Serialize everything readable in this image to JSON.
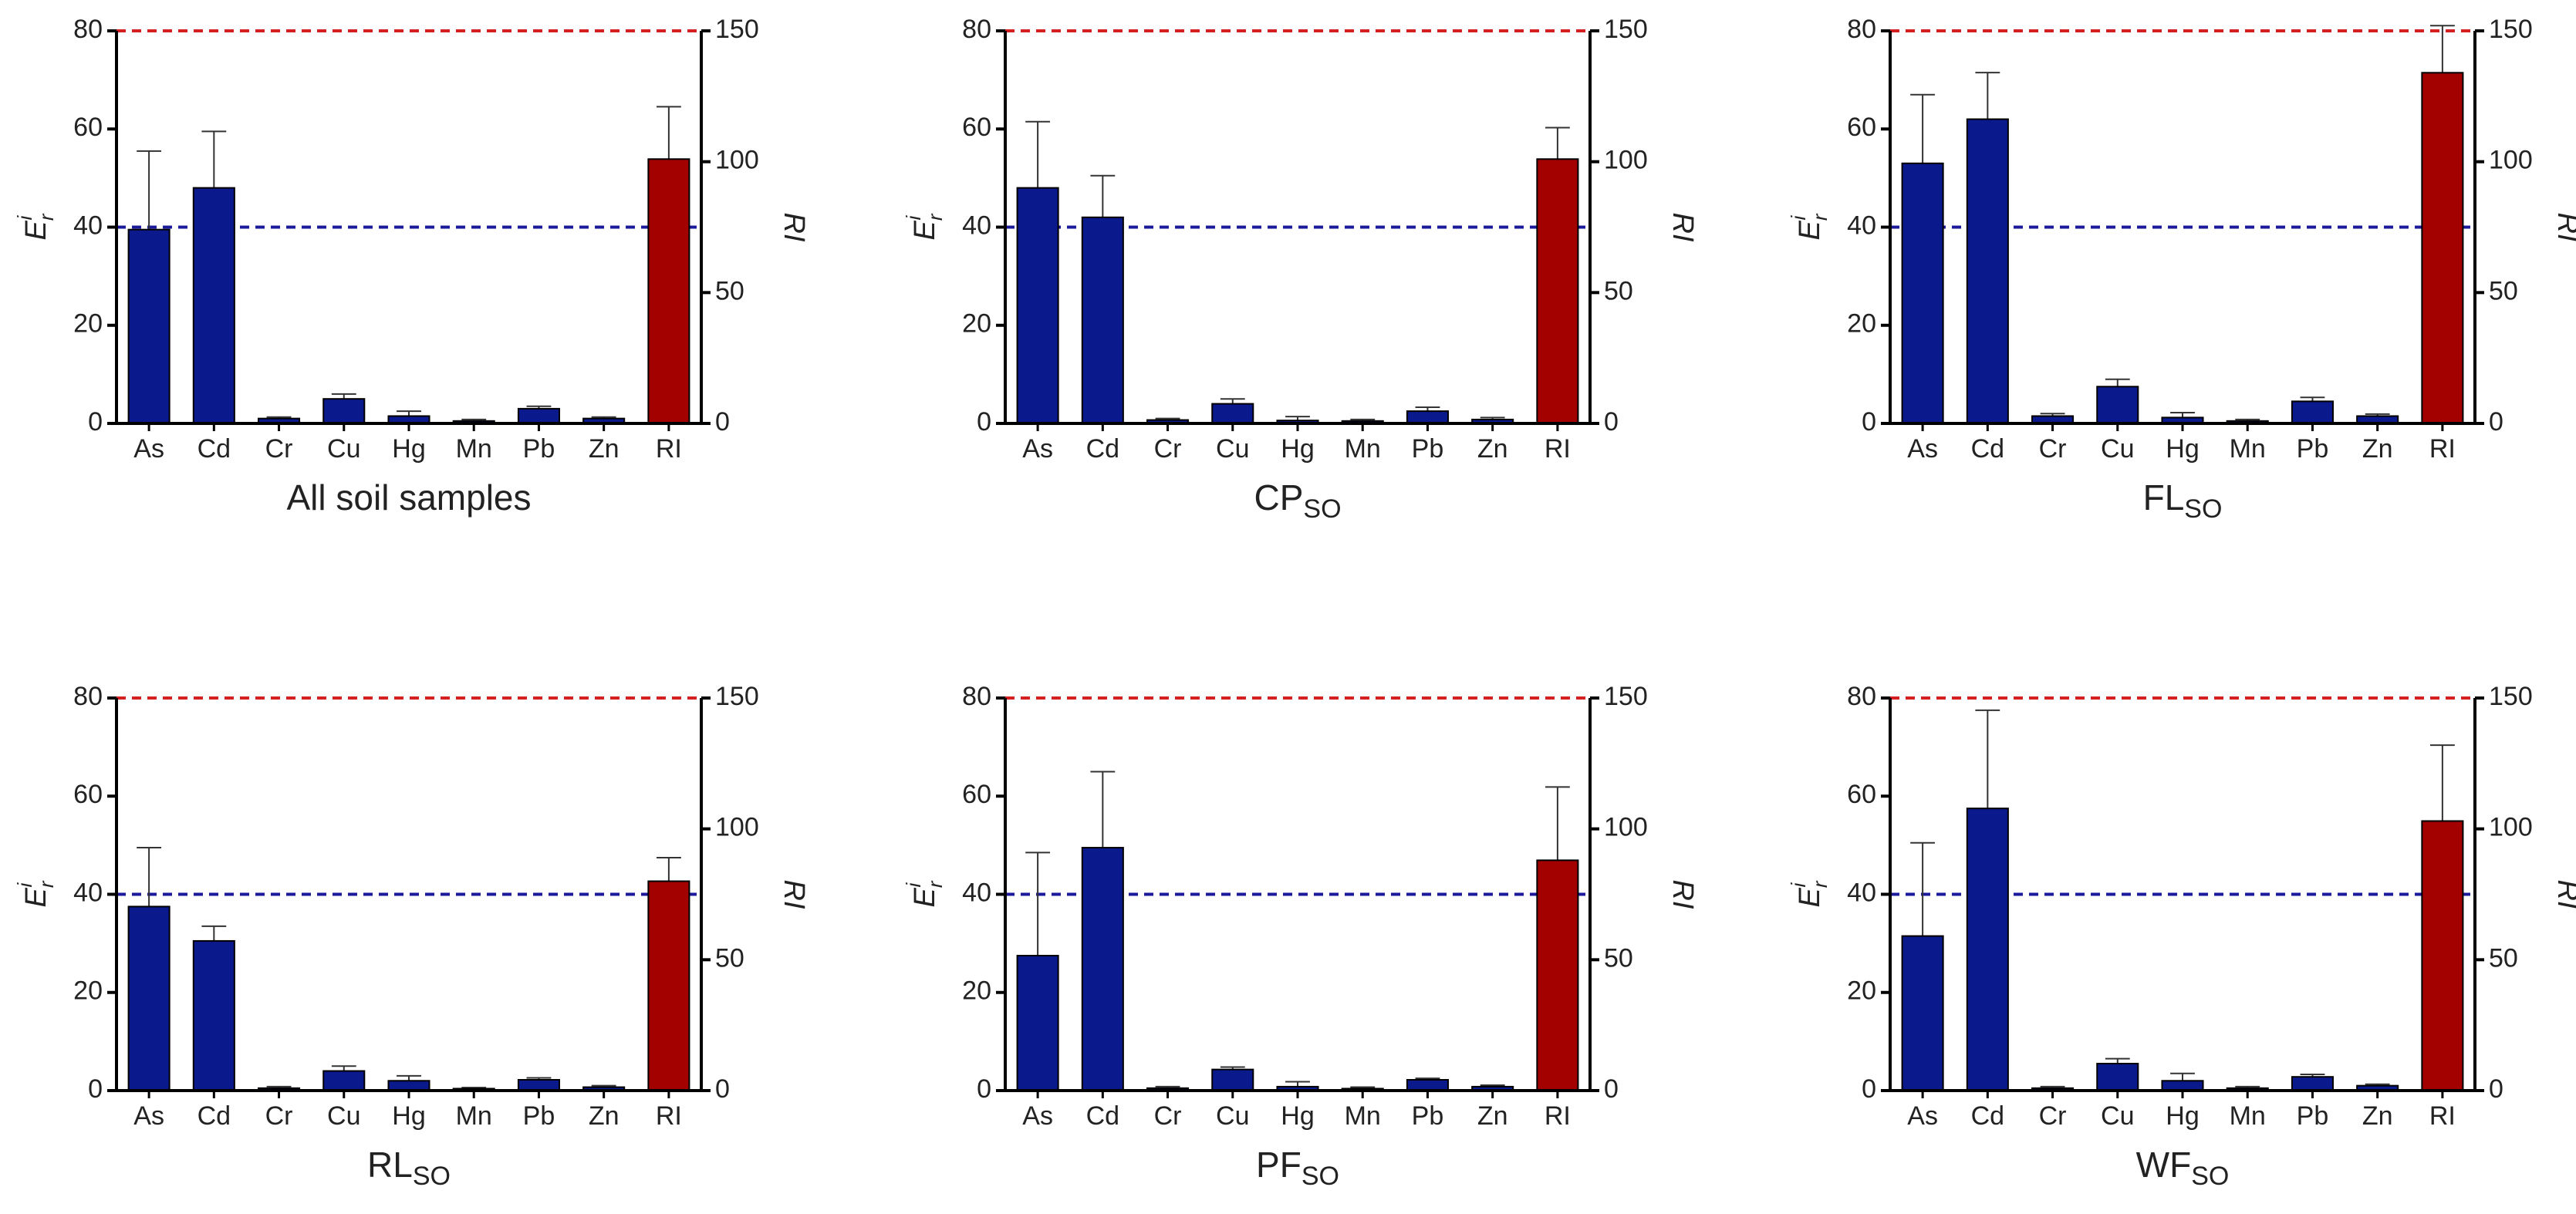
{
  "chart_data": [
    {
      "type": "bar",
      "title": "All soil samples",
      "categories": [
        "As",
        "Cd",
        "Cr",
        "Cu",
        "Hg",
        "Mn",
        "Pb",
        "Zn",
        "RI"
      ],
      "ylabel": "E",
      "ylabel_sub": "r",
      "ylabel_sup": "i",
      "y2label": "RI",
      "ylim": [
        0,
        80
      ],
      "yticks": [
        0,
        20,
        40,
        60,
        80
      ],
      "y2lim": [
        0,
        150
      ],
      "y2ticks": [
        0,
        50,
        100,
        150
      ],
      "hlines": [
        {
          "value": 80,
          "color": "#d42020"
        },
        {
          "value": 40,
          "color": "#1a1a9a"
        }
      ],
      "series": [
        {
          "color": "#0a1a8c",
          "values": [
            39.5,
            48,
            1,
            5,
            1.5,
            0.5,
            3,
            1,
            null
          ],
          "errors": [
            16,
            11.5,
            0.3,
            1,
            1,
            0.3,
            0.5,
            0.3,
            null
          ]
        },
        {
          "color": "#a30000",
          "axis": "y2",
          "values": [
            null,
            null,
            null,
            null,
            null,
            null,
            null,
            null,
            101
          ],
          "errors": [
            null,
            null,
            null,
            null,
            null,
            null,
            null,
            null,
            20
          ]
        }
      ]
    },
    {
      "type": "bar",
      "title": "CP",
      "title_sub": "SO",
      "categories": [
        "As",
        "Cd",
        "Cr",
        "Cu",
        "Hg",
        "Mn",
        "Pb",
        "Zn",
        "RI"
      ],
      "ylabel": "E",
      "ylabel_sub": "r",
      "ylabel_sup": "i",
      "y2label": "RI",
      "ylim": [
        0,
        80
      ],
      "yticks": [
        0,
        20,
        40,
        60,
        80
      ],
      "y2lim": [
        0,
        150
      ],
      "y2ticks": [
        0,
        50,
        100,
        150
      ],
      "hlines": [
        {
          "value": 80,
          "color": "#d42020"
        },
        {
          "value": 40,
          "color": "#1a1a9a"
        }
      ],
      "series": [
        {
          "color": "#0a1a8c",
          "values": [
            48,
            42,
            0.7,
            4,
            0.6,
            0.5,
            2.5,
            0.8,
            null
          ],
          "errors": [
            13.5,
            8.5,
            0.3,
            1,
            0.8,
            0.3,
            0.8,
            0.4,
            null
          ]
        },
        {
          "color": "#a30000",
          "axis": "y2",
          "values": [
            null,
            null,
            null,
            null,
            null,
            null,
            null,
            null,
            101
          ],
          "errors": [
            null,
            null,
            null,
            null,
            null,
            null,
            null,
            null,
            12
          ]
        }
      ]
    },
    {
      "type": "bar",
      "title": "FL",
      "title_sub": "SO",
      "categories": [
        "As",
        "Cd",
        "Cr",
        "Cu",
        "Hg",
        "Mn",
        "Pb",
        "Zn",
        "RI"
      ],
      "ylabel": "E",
      "ylabel_sub": "r",
      "ylabel_sup": "i",
      "y2label": "RI",
      "ylim": [
        0,
        80
      ],
      "yticks": [
        0,
        20,
        40,
        60,
        80
      ],
      "y2lim": [
        0,
        150
      ],
      "y2ticks": [
        0,
        50,
        100,
        150
      ],
      "hlines": [
        {
          "value": 80,
          "color": "#d42020"
        },
        {
          "value": 40,
          "color": "#1a1a9a"
        }
      ],
      "series": [
        {
          "color": "#0a1a8c",
          "values": [
            53,
            62,
            1.5,
            7.5,
            1.2,
            0.5,
            4.5,
            1.5,
            null
          ],
          "errors": [
            14,
            9.5,
            0.5,
            1.5,
            1,
            0.3,
            0.8,
            0.4,
            null
          ]
        },
        {
          "color": "#a30000",
          "axis": "y2",
          "values": [
            null,
            null,
            null,
            null,
            null,
            null,
            null,
            null,
            134
          ],
          "errors": [
            null,
            null,
            null,
            null,
            null,
            null,
            null,
            null,
            18
          ]
        }
      ]
    },
    {
      "type": "bar",
      "title": "RL",
      "title_sub": "SO",
      "categories": [
        "As",
        "Cd",
        "Cr",
        "Cu",
        "Hg",
        "Mn",
        "Pb",
        "Zn",
        "RI"
      ],
      "ylabel": "E",
      "ylabel_sub": "r",
      "ylabel_sup": "i",
      "y2label": "RI",
      "ylim": [
        0,
        80
      ],
      "yticks": [
        0,
        20,
        40,
        60,
        80
      ],
      "y2lim": [
        0,
        150
      ],
      "y2ticks": [
        0,
        50,
        100,
        150
      ],
      "hlines": [
        {
          "value": 80,
          "color": "#d42020"
        },
        {
          "value": 40,
          "color": "#1a1a9a"
        }
      ],
      "series": [
        {
          "color": "#0a1a8c",
          "values": [
            37.5,
            30.5,
            0.5,
            4,
            2,
            0.4,
            2.2,
            0.7,
            null
          ],
          "errors": [
            12,
            3,
            0.3,
            1,
            1,
            0.2,
            0.4,
            0.3,
            null
          ]
        },
        {
          "color": "#a30000",
          "axis": "y2",
          "values": [
            null,
            null,
            null,
            null,
            null,
            null,
            null,
            null,
            80
          ],
          "errors": [
            null,
            null,
            null,
            null,
            null,
            null,
            null,
            null,
            9
          ]
        }
      ]
    },
    {
      "type": "bar",
      "title": "PF",
      "title_sub": "SO",
      "categories": [
        "As",
        "Cd",
        "Cr",
        "Cu",
        "Hg",
        "Mn",
        "Pb",
        "Zn",
        "RI"
      ],
      "ylabel": "E",
      "ylabel_sub": "r",
      "ylabel_sup": "i",
      "y2label": "RI",
      "ylim": [
        0,
        80
      ],
      "yticks": [
        0,
        20,
        40,
        60,
        80
      ],
      "y2lim": [
        0,
        150
      ],
      "y2ticks": [
        0,
        50,
        100,
        150
      ],
      "hlines": [
        {
          "value": 80,
          "color": "#d42020"
        },
        {
          "value": 40,
          "color": "#1a1a9a"
        }
      ],
      "series": [
        {
          "color": "#0a1a8c",
          "values": [
            27.5,
            49.5,
            0.5,
            4.3,
            0.8,
            0.4,
            2.2,
            0.8,
            null
          ],
          "errors": [
            21,
            15.5,
            0.3,
            0.5,
            1,
            0.3,
            0.3,
            0.3,
            null
          ]
        },
        {
          "color": "#a30000",
          "axis": "y2",
          "values": [
            null,
            null,
            null,
            null,
            null,
            null,
            null,
            null,
            88
          ],
          "errors": [
            null,
            null,
            null,
            null,
            null,
            null,
            null,
            null,
            28
          ]
        }
      ]
    },
    {
      "type": "bar",
      "title": "WF",
      "title_sub": "SO",
      "categories": [
        "As",
        "Cd",
        "Cr",
        "Cu",
        "Hg",
        "Mn",
        "Pb",
        "Zn",
        "RI"
      ],
      "ylabel": "E",
      "ylabel_sub": "r",
      "ylabel_sup": "i",
      "y2label": "RI",
      "ylim": [
        0,
        80
      ],
      "yticks": [
        0,
        20,
        40,
        60,
        80
      ],
      "y2lim": [
        0,
        150
      ],
      "y2ticks": [
        0,
        50,
        100,
        150
      ],
      "hlines": [
        {
          "value": 80,
          "color": "#d42020"
        },
        {
          "value": 40,
          "color": "#1a1a9a"
        }
      ],
      "series": [
        {
          "color": "#0a1a8c",
          "values": [
            31.5,
            57.5,
            0.5,
            5.5,
            2,
            0.5,
            2.8,
            1,
            null
          ],
          "errors": [
            19,
            20,
            0.3,
            1,
            1.5,
            0.3,
            0.5,
            0.3,
            null
          ]
        },
        {
          "color": "#a30000",
          "axis": "y2",
          "values": [
            null,
            null,
            null,
            null,
            null,
            null,
            null,
            null,
            103
          ],
          "errors": [
            null,
            null,
            null,
            null,
            null,
            null,
            null,
            null,
            29
          ]
        }
      ]
    }
  ]
}
